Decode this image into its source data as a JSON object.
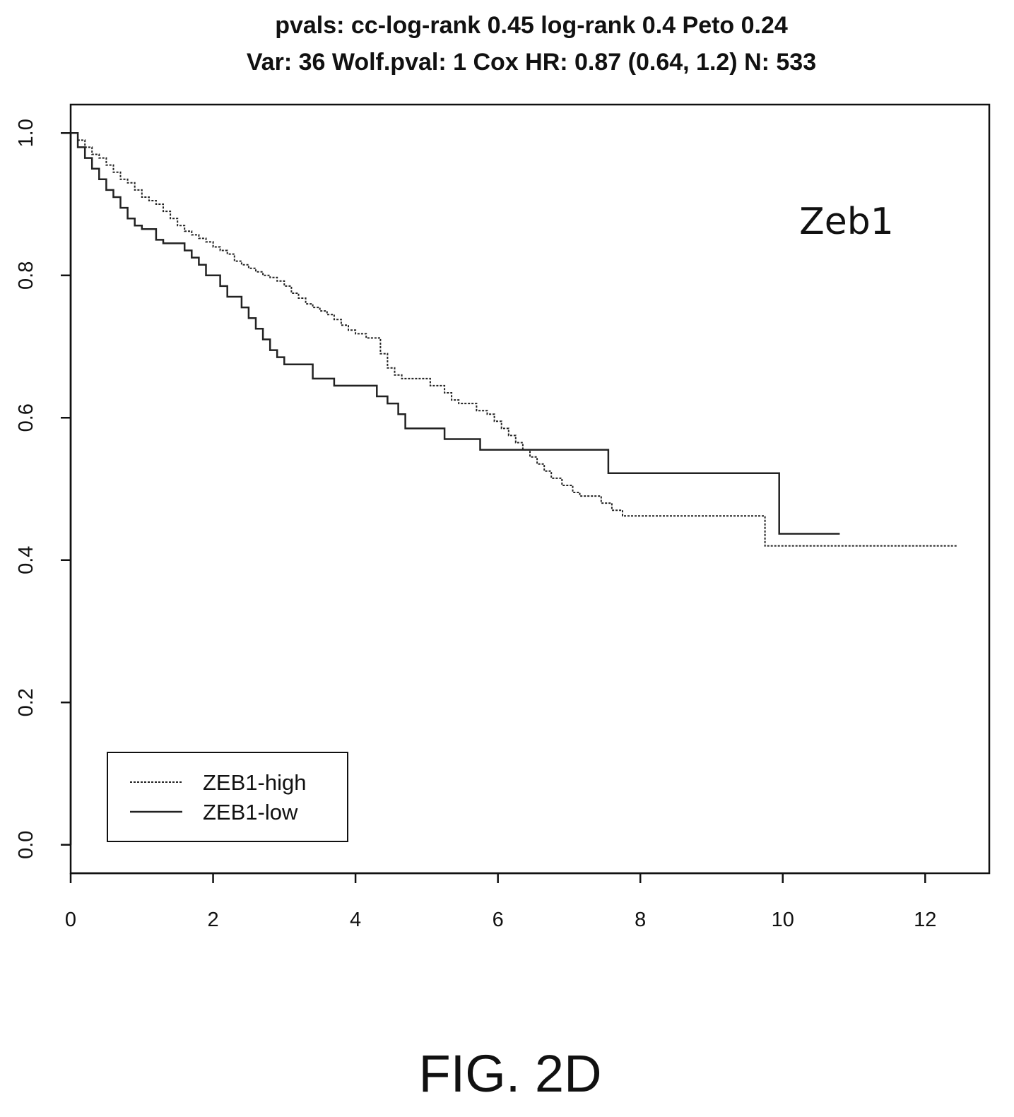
{
  "title_line1": "pvals: cc-log-rank  0.45 log-rank 0.4 Peto 0.24",
  "title_line2": "Var: 36  Wolf.pval:  1  Cox HR: 0.87 (0.64, 1.2)  N: 533",
  "annotation": "Zeb1",
  "figure_label": "FIG. 2D",
  "chart_data": {
    "type": "line",
    "step": true,
    "title": "pvals: cc-log-rank  0.45 log-rank 0.4 Peto 0.24 / Var: 36  Wolf.pval:  1  Cox HR: 0.87 (0.64, 1.2)  N: 533",
    "xlabel": "",
    "ylabel": "",
    "xlim": [
      0,
      12.9
    ],
    "ylim": [
      -0.04,
      1.04
    ],
    "x_ticks": [
      0,
      2,
      4,
      6,
      8,
      10,
      12
    ],
    "y_ticks": [
      0.0,
      0.2,
      0.4,
      0.6,
      0.8,
      1.0
    ],
    "x_tick_labels": [
      "0",
      "2",
      "4",
      "6",
      "8",
      "10",
      "12"
    ],
    "y_tick_labels": [
      "0.0",
      "0.2",
      "0.4",
      "0.6",
      "0.8",
      "1.0"
    ],
    "grid": false,
    "legend_position": "bottom-left",
    "series": [
      {
        "name": "ZEB1-high",
        "style": "dashed",
        "x": [
          0,
          0.1,
          0.2,
          0.3,
          0.4,
          0.5,
          0.6,
          0.7,
          0.8,
          0.9,
          1.0,
          1.1,
          1.2,
          1.3,
          1.4,
          1.5,
          1.6,
          1.7,
          1.8,
          1.9,
          2.0,
          2.1,
          2.2,
          2.3,
          2.4,
          2.5,
          2.6,
          2.7,
          2.8,
          2.9,
          3.0,
          3.1,
          3.2,
          3.3,
          3.4,
          3.5,
          3.6,
          3.7,
          3.8,
          3.9,
          4.0,
          4.15,
          4.35,
          4.45,
          4.55,
          4.65,
          4.75,
          5.05,
          5.25,
          5.35,
          5.45,
          5.7,
          5.85,
          5.95,
          6.05,
          6.15,
          6.25,
          6.35,
          6.45,
          6.55,
          6.65,
          6.75,
          6.9,
          7.05,
          7.15,
          7.45,
          7.6,
          7.75,
          9.75,
          12.45
        ],
        "y": [
          1.0,
          0.99,
          0.98,
          0.97,
          0.965,
          0.955,
          0.945,
          0.935,
          0.93,
          0.92,
          0.91,
          0.905,
          0.9,
          0.89,
          0.88,
          0.87,
          0.862,
          0.857,
          0.852,
          0.847,
          0.84,
          0.835,
          0.83,
          0.82,
          0.815,
          0.81,
          0.805,
          0.8,
          0.797,
          0.792,
          0.785,
          0.775,
          0.768,
          0.76,
          0.755,
          0.75,
          0.745,
          0.738,
          0.73,
          0.723,
          0.718,
          0.712,
          0.69,
          0.67,
          0.66,
          0.655,
          0.655,
          0.645,
          0.635,
          0.625,
          0.62,
          0.61,
          0.605,
          0.595,
          0.585,
          0.575,
          0.565,
          0.555,
          0.545,
          0.535,
          0.525,
          0.515,
          0.505,
          0.495,
          0.49,
          0.48,
          0.47,
          0.462,
          0.42,
          0.42
        ]
      },
      {
        "name": "ZEB1-low",
        "style": "solid",
        "x": [
          0,
          0.1,
          0.2,
          0.3,
          0.4,
          0.5,
          0.6,
          0.7,
          0.8,
          0.9,
          1.0,
          1.2,
          1.3,
          1.6,
          1.7,
          1.8,
          1.9,
          2.1,
          2.2,
          2.4,
          2.5,
          2.6,
          2.7,
          2.8,
          2.9,
          3.0,
          3.4,
          3.7,
          4.3,
          4.45,
          4.6,
          4.7,
          5.25,
          5.75,
          7.55,
          9.95,
          10.8
        ],
        "y": [
          1.0,
          0.98,
          0.965,
          0.95,
          0.935,
          0.92,
          0.91,
          0.895,
          0.88,
          0.87,
          0.865,
          0.85,
          0.845,
          0.835,
          0.825,
          0.815,
          0.8,
          0.785,
          0.77,
          0.755,
          0.74,
          0.725,
          0.71,
          0.695,
          0.685,
          0.675,
          0.655,
          0.645,
          0.63,
          0.62,
          0.605,
          0.585,
          0.57,
          0.555,
          0.522,
          0.437,
          0.437
        ]
      }
    ]
  }
}
